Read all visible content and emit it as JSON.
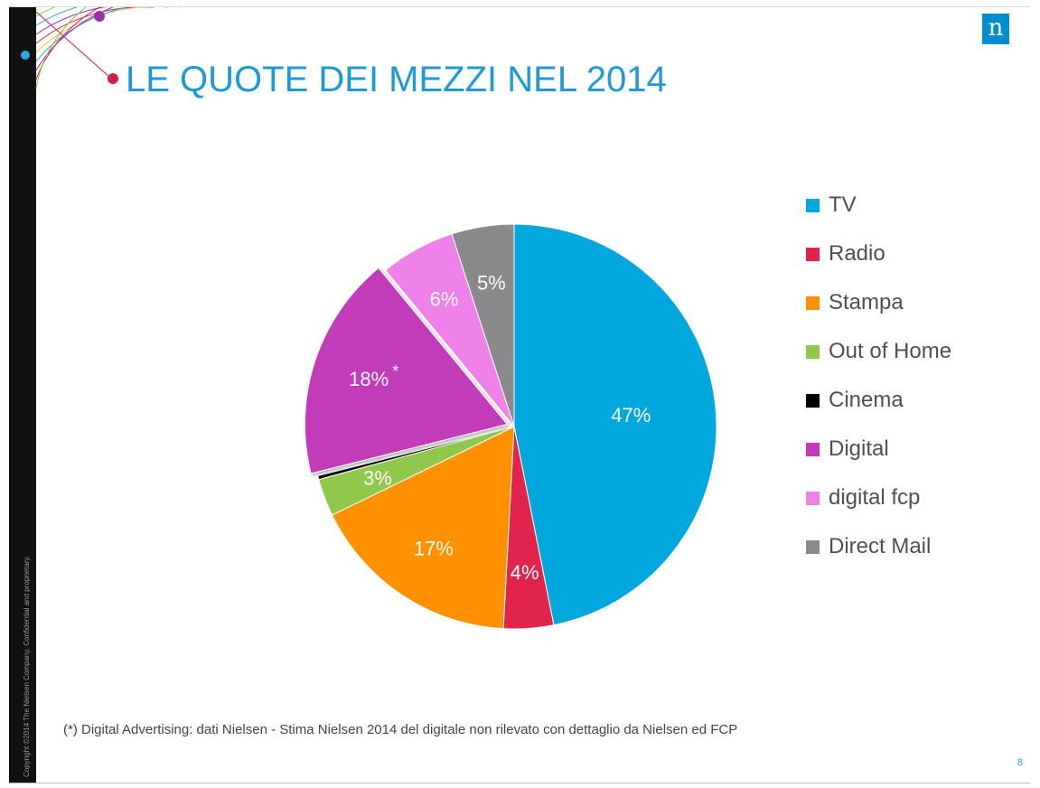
{
  "slide": {
    "title": "LE QUOTE DEI MEZZI NEL 2014",
    "logo_text": "n",
    "footnote": "(*) Digital Advertising: dati Nielsen - Stima  Nielsen 2014 del digitale non rilevato  con dettaglio da Nielsen ed FCP",
    "page_number": "8",
    "copyright": "Copyright ©2014 The Nielsen Company. Confidential and proprietary.",
    "colors": {
      "title": "#1b9ad6",
      "title_dot": "#d61e4b",
      "logo_bg": "#008dcf",
      "left_bar": "#111111"
    }
  },
  "chart_data": {
    "type": "pie",
    "title": "",
    "start_angle_deg": 0,
    "direction": "clockwise",
    "slices": [
      {
        "name": "TV",
        "value": 47,
        "label": "47%",
        "asterisk": false,
        "color": "#00a8dd",
        "exploded": false
      },
      {
        "name": "Radio",
        "value": 4,
        "label": "4%",
        "asterisk": false,
        "color": "#e0244b",
        "exploded": false
      },
      {
        "name": "Stampa",
        "value": 17,
        "label": "17%",
        "asterisk": false,
        "color": "#ff9100",
        "exploded": false
      },
      {
        "name": "Out of Home",
        "value": 3,
        "label": "3%",
        "asterisk": false,
        "color": "#8fc84a",
        "exploded": false
      },
      {
        "name": "Cinema",
        "value": 0.3,
        "label": "",
        "asterisk": false,
        "color": "#000000",
        "exploded": false
      },
      {
        "name": "Digital",
        "value": 18,
        "label": "18%",
        "asterisk": true,
        "color": "#c23ab9",
        "exploded": true
      },
      {
        "name": "digital fcp",
        "value": 6,
        "label": "6%",
        "asterisk": false,
        "color": "#ee82e8",
        "exploded": false
      },
      {
        "name": "Direct Mail",
        "value": 5,
        "label": "5%",
        "asterisk": false,
        "color": "#8a8a8c",
        "exploded": false
      }
    ],
    "legend": {
      "position": "right",
      "items": [
        "TV",
        "Radio",
        "Stampa",
        "Out of Home",
        "Cinema",
        "Digital",
        "digital fcp",
        "Direct Mail"
      ]
    }
  }
}
